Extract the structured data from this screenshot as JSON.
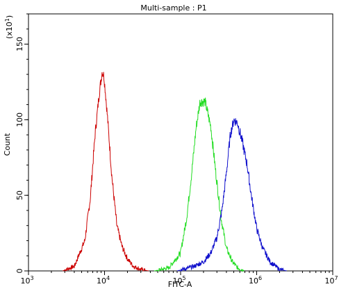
{
  "chart_data": {
    "type": "line",
    "title": "Multi-sample : P1",
    "xlabel": "FITC-A",
    "ylabel": "Count",
    "y_multiplier_label": "(x10",
    "y_multiplier_exp": "1",
    "x_scale": "log",
    "xlim": [
      1000,
      10000000
    ],
    "ylim": [
      0,
      170
    ],
    "x_ticks": [
      {
        "value": 1000,
        "base": "10",
        "exp": "3"
      },
      {
        "value": 10000,
        "base": "10",
        "exp": "4"
      },
      {
        "value": 100000,
        "base": "10",
        "exp": "5"
      },
      {
        "value": 1000000,
        "base": "10",
        "exp": "6"
      },
      {
        "value": 10000000,
        "base": "10",
        "exp": "7"
      }
    ],
    "y_ticks": [
      {
        "value": 0,
        "label": "0"
      },
      {
        "value": 50,
        "label": "50"
      },
      {
        "value": 100,
        "label": "100"
      },
      {
        "value": 150,
        "label": "150"
      }
    ],
    "grid": false,
    "legend": "none",
    "series": [
      {
        "color": "#cc0000",
        "x": [
          2800,
          4000,
          5500,
          6500,
          7500,
          8500,
          9300,
          9800,
          10200,
          11000,
          12500,
          14500,
          17000,
          20000,
          24000,
          30000,
          38000
        ],
        "y": [
          0,
          3,
          20,
          48,
          90,
          117,
          132,
          129,
          120,
          100,
          62,
          30,
          16,
          8,
          3,
          1,
          0
        ]
      },
      {
        "color": "#22dd22",
        "x": [
          45000,
          70000,
          100000,
          120000,
          140000,
          160000,
          180000,
          210000,
          250000,
          290000,
          340000,
          400000,
          480000,
          560000,
          700000
        ],
        "y": [
          0,
          2,
          12,
          35,
          65,
          95,
          112,
          112,
          95,
          65,
          35,
          15,
          6,
          2,
          0
        ]
      },
      {
        "color": "#1010cc",
        "x": [
          90000,
          150000,
          200000,
          250000,
          300000,
          350000,
          400000,
          450000,
          500000,
          560000,
          650000,
          750000,
          850000,
          1000000,
          1200000,
          1500000,
          2000000,
          2500000
        ],
        "y": [
          0,
          3,
          6,
          12,
          22,
          40,
          65,
          90,
          100,
          98,
          85,
          70,
          50,
          28,
          15,
          6,
          1,
          0
        ]
      }
    ]
  }
}
